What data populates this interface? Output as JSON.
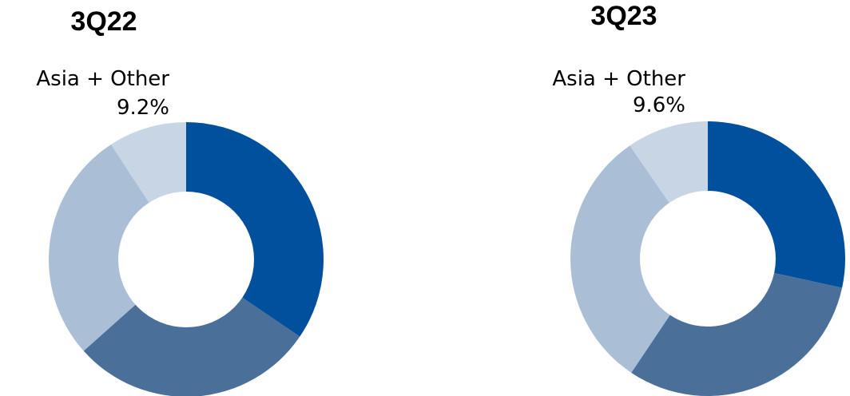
{
  "colors": {
    "background": "#ffffff",
    "hole": "#ffffff",
    "slices": [
      "#00509e",
      "#4a7099",
      "#aabfd6",
      "#c8d5e5"
    ]
  },
  "chart_data": [
    {
      "type": "pie",
      "title": "3Q22",
      "slices": [
        {
          "value": 34.5
        },
        {
          "value": 28.9
        },
        {
          "value": 27.4
        },
        {
          "label": "Asia + Other",
          "value": 9.2,
          "value_label": "9.2%"
        }
      ],
      "donut": true
    },
    {
      "type": "pie",
      "title": "3Q23",
      "slices": [
        {
          "value": 28.4
        },
        {
          "value": 31.0
        },
        {
          "value": 31.0
        },
        {
          "label": "Asia + Other",
          "value": 9.6,
          "value_label": "9.6%"
        }
      ],
      "donut": true
    }
  ]
}
